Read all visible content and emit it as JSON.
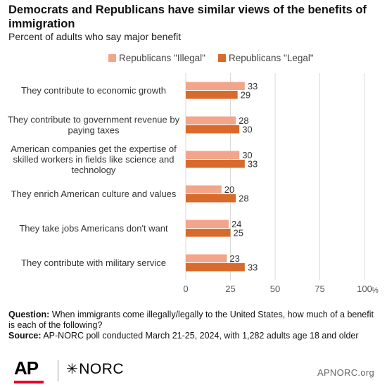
{
  "title": "Democrats and Republicans have similar views of the benefits of immigration",
  "subtitle": "Percent of adults who say major benefit",
  "chart_data": {
    "type": "bar",
    "orientation": "horizontal",
    "categories": [
      "They contribute to economic growth",
      "They contribute to government revenue by paying taxes",
      "American companies get the expertise of skilled workers in fields like science and technology",
      "They enrich American culture and values",
      "They take jobs Americans don't want",
      "They contribute with military service"
    ],
    "category_lines": [
      [
        "They contribute to economic growth"
      ],
      [
        "They contribute to government revenue by",
        "paying taxes"
      ],
      [
        "American companies get the expertise of",
        "skilled workers in fields like science and",
        "technology"
      ],
      [
        "They enrich American culture and values"
      ],
      [
        "They take jobs Americans don't want"
      ],
      [
        "They contribute with military service"
      ]
    ],
    "series": [
      {
        "name": "Republicans \"Illegal\"",
        "color": "#f2a58a",
        "values": [
          33,
          28,
          30,
          20,
          24,
          23
        ]
      },
      {
        "name": "Republicans \"Legal\"",
        "color": "#d86a2b",
        "values": [
          29,
          30,
          33,
          28,
          25,
          33
        ]
      }
    ],
    "xlim": [
      0,
      100
    ],
    "xticks": [
      0,
      25,
      50,
      75,
      100
    ],
    "tick_labels": [
      "0",
      "25",
      "50",
      "75",
      "100"
    ],
    "unit_label": "%",
    "legend_position": "top-right",
    "grid": true
  },
  "footnote": {
    "question_label": "Question:",
    "question_text": " When immigrants come illegally/legally to the United States, how much of a benefit is each of the following?",
    "source_label": "Source:",
    "source_text": " AP-NORC poll conducted March 21-25, 2024, with 1,282 adults age 18 and older"
  },
  "logos": {
    "ap": "AP",
    "norc": "NORC"
  },
  "site": "APNORC.org"
}
